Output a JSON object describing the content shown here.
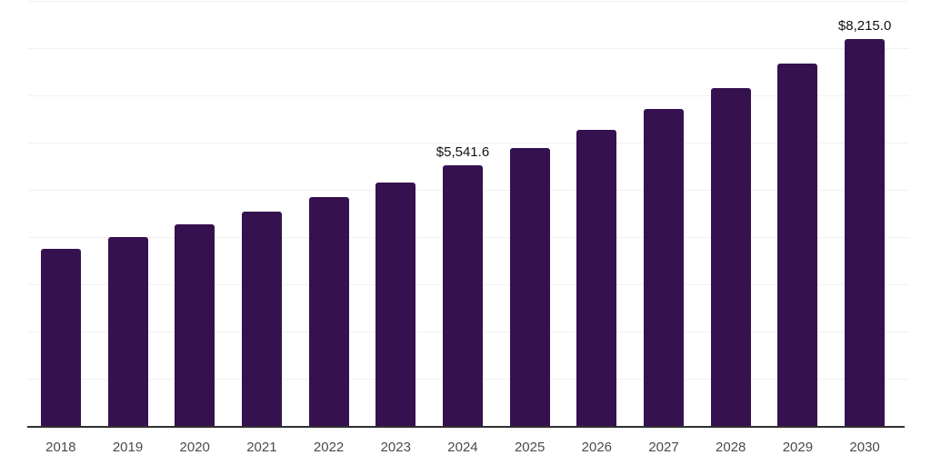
{
  "chart_data": {
    "type": "bar",
    "title": "",
    "xlabel": "",
    "ylabel": "",
    "categories": [
      "2018",
      "2019",
      "2020",
      "2021",
      "2022",
      "2023",
      "2024",
      "2025",
      "2026",
      "2027",
      "2028",
      "2029",
      "2030"
    ],
    "values": [
      3770,
      4020,
      4280,
      4560,
      4860,
      5180,
      5541.6,
      5910,
      6290,
      6740,
      7180,
      7690,
      8215
    ],
    "data_labels": [
      "",
      "",
      "",
      "",
      "",
      "",
      "$5,541.6",
      "",
      "",
      "",
      "",
      "",
      "$8,215.0"
    ],
    "ylim": [
      0,
      9000
    ],
    "gridline_step": 1000,
    "grid": true,
    "legend_position": "none",
    "colors": {
      "bar": "#36114f",
      "gridline": "#f1f1f1",
      "axis_line": "#303032",
      "tick_label": "#4b4b4d",
      "data_label": "#111111",
      "background": "#ffffff"
    }
  }
}
